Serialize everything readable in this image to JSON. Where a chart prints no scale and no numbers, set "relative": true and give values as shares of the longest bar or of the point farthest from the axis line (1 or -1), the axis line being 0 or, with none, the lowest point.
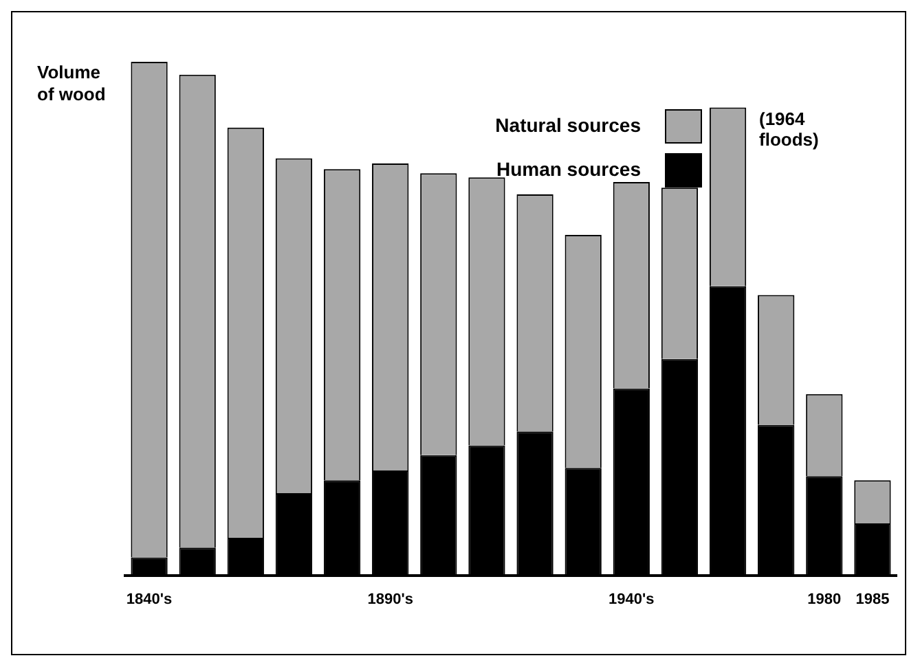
{
  "chart_data": {
    "type": "bar",
    "stacked": true,
    "relative": true,
    "ylabel": "Volume of wood",
    "legend": "top right",
    "grid": false,
    "categories": [
      "1840's",
      null,
      null,
      null,
      null,
      "1890's",
      null,
      null,
      null,
      null,
      "1940's",
      null,
      null,
      null,
      "1980",
      "1985"
    ],
    "series": [
      {
        "name": "Human sources",
        "color": "#000000",
        "values": [
          0.035,
          0.054,
          0.073,
          0.16,
          0.185,
          0.204,
          0.234,
          0.253,
          0.28,
          0.209,
          0.364,
          0.421,
          0.563,
          0.293,
          0.193,
          0.101
        ]
      },
      {
        "name": "Natural sources",
        "color": "#a8a8a8",
        "values": [
          0.965,
          0.921,
          0.799,
          0.652,
          0.606,
          0.598,
          0.549,
          0.522,
          0.462,
          0.454,
          0.402,
          0.334,
          0.348,
          0.253,
          0.16,
          0.084
        ]
      }
    ],
    "annotations": [
      "(1964 floods)"
    ]
  }
}
